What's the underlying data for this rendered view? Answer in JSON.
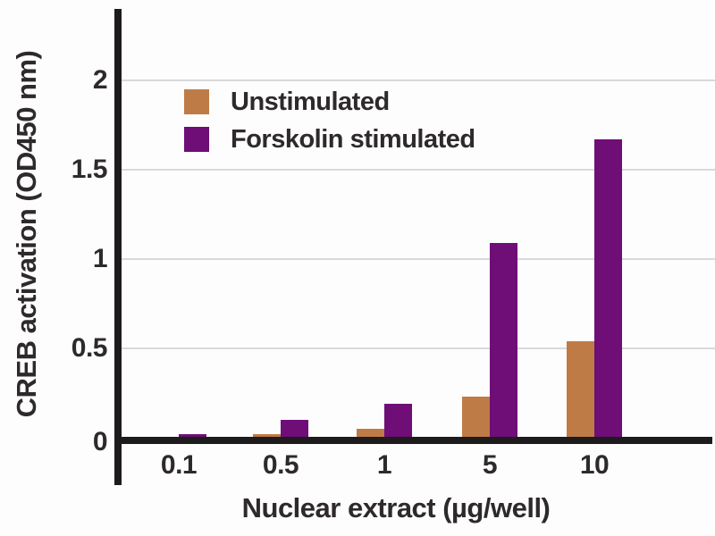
{
  "chart_data": {
    "type": "bar",
    "title": "",
    "xlabel": "Nuclear extract (µg/well)",
    "ylabel": "CREB activation (OD450 nm)",
    "categories": [
      "0.1",
      "0.5",
      "1",
      "5",
      "10"
    ],
    "series": [
      {
        "name": "Unstimulated",
        "color": "#bf7b46",
        "values": [
          0.01,
          0.03,
          0.06,
          0.24,
          0.55
        ]
      },
      {
        "name": "Forskolin stimulated",
        "color": "#6e0e76",
        "values": [
          0.03,
          0.11,
          0.2,
          1.1,
          1.68
        ]
      }
    ],
    "y_ticks": [
      {
        "value": 0,
        "label": "0"
      },
      {
        "value": 0.5,
        "label": "0.5"
      },
      {
        "value": 1,
        "label": "1"
      },
      {
        "value": 1.5,
        "label": "1.5"
      },
      {
        "value": 2,
        "label": "2"
      }
    ],
    "ylim": [
      0,
      2.4
    ],
    "grid": true,
    "legend_position": "top-left"
  },
  "colors": {
    "axis": "#1d1b1c",
    "gridline": "#d9d9d9",
    "text": "#2e2a2b",
    "background": "#fdfdfd"
  }
}
